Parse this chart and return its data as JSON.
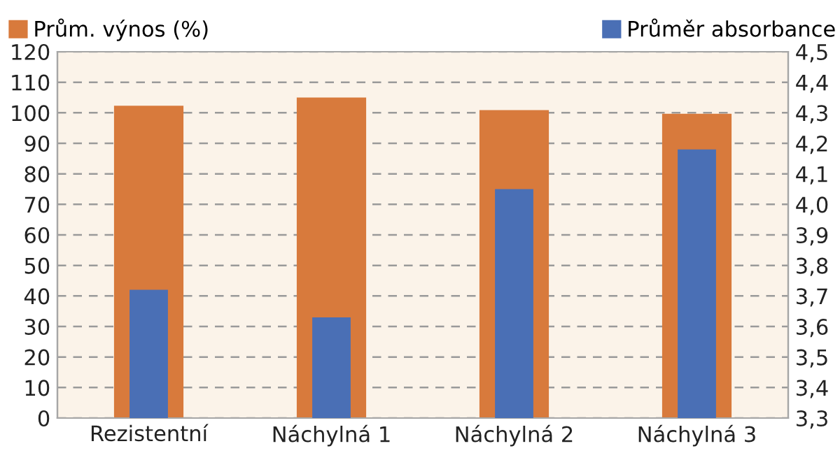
{
  "chart_data": {
    "type": "bar",
    "categories": [
      "Rezistentní",
      "Náchylná 1",
      "Náchylná 2",
      "Náchylná 3"
    ],
    "series": [
      {
        "name": "Prům. výnos (%)",
        "color": "#d87a3c",
        "values": [
          102.3,
          105,
          100.9,
          99.7
        ]
      },
      {
        "name": "Průměr absorbance",
        "color": "#4a6fb5",
        "axis": "y2",
        "values": [
          3.72,
          3.63,
          4.05,
          4.18
        ]
      }
    ],
    "ylim": [
      0,
      120
    ],
    "yticks": [
      0,
      10,
      20,
      30,
      40,
      50,
      60,
      70,
      80,
      90,
      100,
      110,
      120
    ],
    "y2lim": [
      3.3,
      4.5
    ],
    "y2ticks": [
      {
        "value": 3.3,
        "label": "3,3"
      },
      {
        "value": 3.4,
        "label": "3,4"
      },
      {
        "value": 3.5,
        "label": "3,5"
      },
      {
        "value": 3.6,
        "label": "3,6"
      },
      {
        "value": 3.7,
        "label": "3,7"
      },
      {
        "value": 3.8,
        "label": "3,8"
      },
      {
        "value": 3.9,
        "label": "3,9"
      },
      {
        "value": 4.0,
        "label": "4,0"
      },
      {
        "value": 4.1,
        "label": "4,1"
      },
      {
        "value": 4.2,
        "label": "4,2"
      },
      {
        "value": 4.3,
        "label": "4,3"
      },
      {
        "value": 4.4,
        "label": "4,4"
      },
      {
        "value": 4.5,
        "label": "4,5"
      }
    ],
    "grid": "y",
    "legend": "top"
  }
}
